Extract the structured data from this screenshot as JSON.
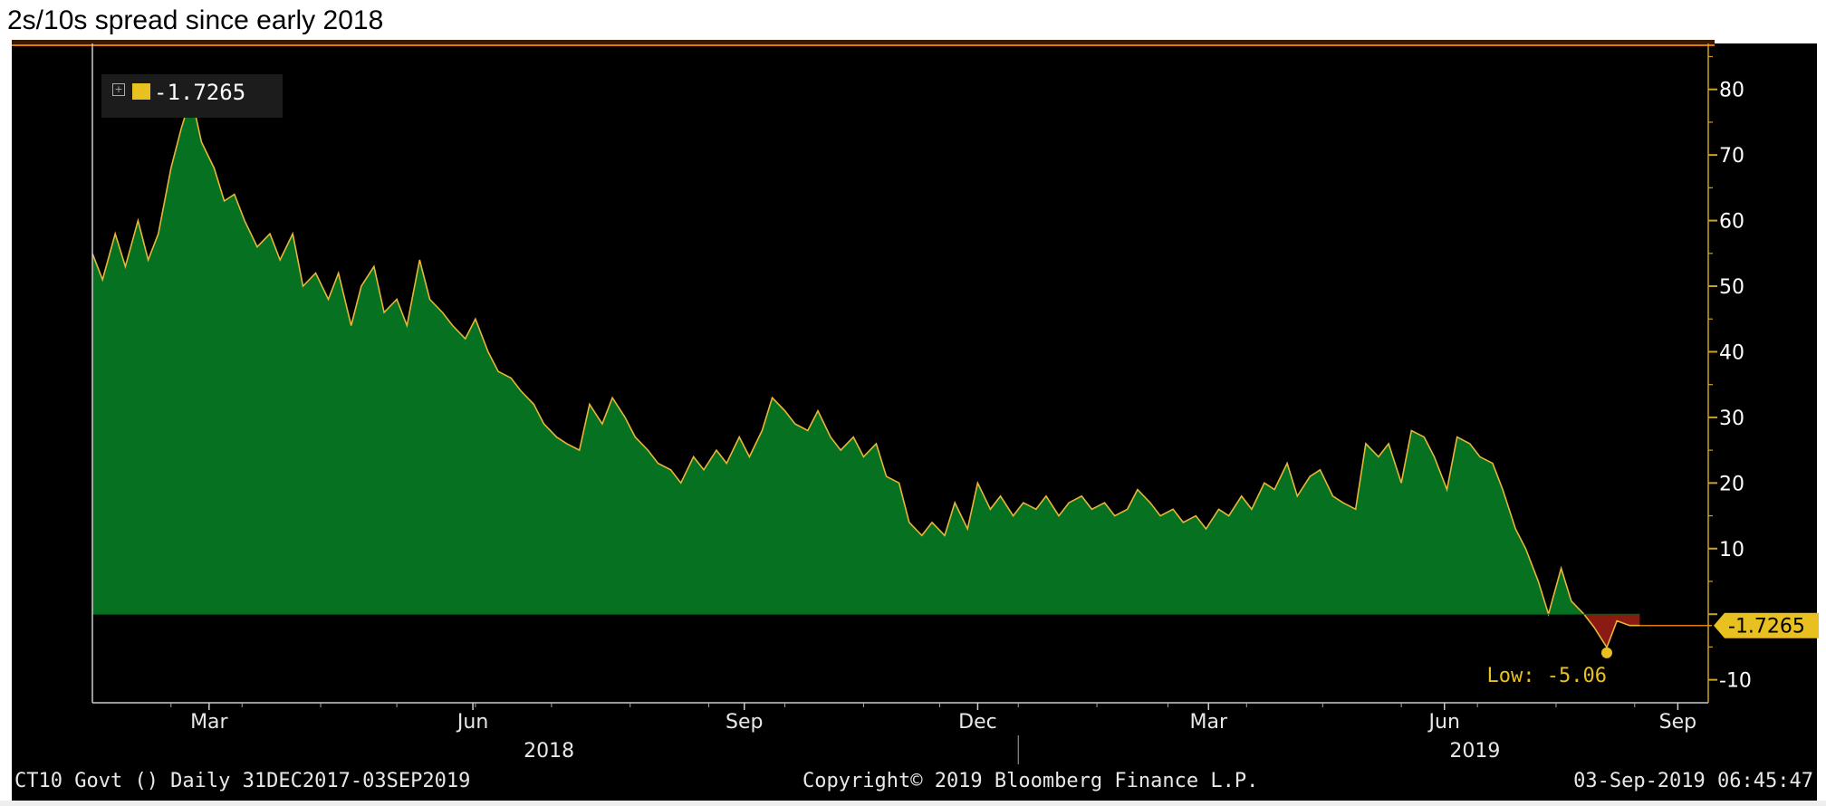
{
  "page_title": "2s/10s spread since early 2018",
  "legend": {
    "value_label": "-1.7265"
  },
  "footer": {
    "left": "CT10 Govt ()  Daily 31DEC2017-03SEP2019",
    "middle": "Copyright© 2019 Bloomberg Finance L.P.",
    "right": "03-Sep-2019 06:45:47"
  },
  "colors": {
    "positive_fill": "#067221",
    "negative_fill": "#8b1a12",
    "line": "#e8b53a",
    "axis": "#c9a227",
    "background": "#000000"
  },
  "chart_data": {
    "type": "area",
    "title": "2s/10s spread since early 2018",
    "series": [
      {
        "values": [
          [
            "2018-01-01",
            55
          ],
          [
            "2018-01-05",
            51
          ],
          [
            "2018-01-10",
            58
          ],
          [
            "2018-01-14",
            53
          ],
          [
            "2018-01-19",
            60
          ],
          [
            "2018-01-23",
            54
          ],
          [
            "2018-01-27",
            58
          ],
          [
            "2018-02-01",
            68
          ],
          [
            "2018-02-05",
            74
          ],
          [
            "2018-02-09",
            79
          ],
          [
            "2018-02-13",
            72
          ],
          [
            "2018-02-18",
            68
          ],
          [
            "2018-02-22",
            63
          ],
          [
            "2018-02-26",
            64
          ],
          [
            "2018-03-02",
            60
          ],
          [
            "2018-03-07",
            56
          ],
          [
            "2018-03-12",
            58
          ],
          [
            "2018-03-16",
            54
          ],
          [
            "2018-03-21",
            58
          ],
          [
            "2018-03-25",
            50
          ],
          [
            "2018-03-30",
            52
          ],
          [
            "2018-04-04",
            48
          ],
          [
            "2018-04-08",
            52
          ],
          [
            "2018-04-13",
            44
          ],
          [
            "2018-04-17",
            50
          ],
          [
            "2018-04-22",
            53
          ],
          [
            "2018-04-26",
            46
          ],
          [
            "2018-05-01",
            48
          ],
          [
            "2018-05-05",
            44
          ],
          [
            "2018-05-10",
            54
          ],
          [
            "2018-05-14",
            48
          ],
          [
            "2018-05-19",
            46
          ],
          [
            "2018-05-23",
            44
          ],
          [
            "2018-05-28",
            42
          ],
          [
            "2018-06-01",
            45
          ],
          [
            "2018-06-06",
            40
          ],
          [
            "2018-06-10",
            37
          ],
          [
            "2018-06-15",
            36
          ],
          [
            "2018-06-19",
            34
          ],
          [
            "2018-06-24",
            32
          ],
          [
            "2018-06-28",
            29
          ],
          [
            "2018-07-03",
            27
          ],
          [
            "2018-07-07",
            26
          ],
          [
            "2018-07-12",
            25
          ],
          [
            "2018-07-16",
            32
          ],
          [
            "2018-07-21",
            29
          ],
          [
            "2018-07-25",
            33
          ],
          [
            "2018-07-30",
            30
          ],
          [
            "2018-08-03",
            27
          ],
          [
            "2018-08-08",
            25
          ],
          [
            "2018-08-12",
            23
          ],
          [
            "2018-08-17",
            22
          ],
          [
            "2018-08-21",
            20
          ],
          [
            "2018-08-26",
            24
          ],
          [
            "2018-08-30",
            22
          ],
          [
            "2018-09-04",
            25
          ],
          [
            "2018-09-08",
            23
          ],
          [
            "2018-09-13",
            27
          ],
          [
            "2018-09-17",
            24
          ],
          [
            "2018-09-22",
            28
          ],
          [
            "2018-09-26",
            33
          ],
          [
            "2018-10-01",
            31
          ],
          [
            "2018-10-05",
            29
          ],
          [
            "2018-10-10",
            28
          ],
          [
            "2018-10-14",
            31
          ],
          [
            "2018-10-19",
            27
          ],
          [
            "2018-10-23",
            25
          ],
          [
            "2018-10-28",
            27
          ],
          [
            "2018-11-01",
            24
          ],
          [
            "2018-11-06",
            26
          ],
          [
            "2018-11-10",
            21
          ],
          [
            "2018-11-15",
            20
          ],
          [
            "2018-11-19",
            14
          ],
          [
            "2018-11-24",
            12
          ],
          [
            "2018-11-28",
            14
          ],
          [
            "2018-12-03",
            12
          ],
          [
            "2018-12-07",
            17
          ],
          [
            "2018-12-12",
            13
          ],
          [
            "2018-12-16",
            20
          ],
          [
            "2018-12-21",
            16
          ],
          [
            "2018-12-25",
            18
          ],
          [
            "2018-12-30",
            15
          ],
          [
            "2019-01-03",
            17
          ],
          [
            "2019-01-08",
            16
          ],
          [
            "2019-01-12",
            18
          ],
          [
            "2019-01-17",
            15
          ],
          [
            "2019-01-21",
            17
          ],
          [
            "2019-01-26",
            18
          ],
          [
            "2019-01-30",
            16
          ],
          [
            "2019-02-04",
            17
          ],
          [
            "2019-02-08",
            15
          ],
          [
            "2019-02-13",
            16
          ],
          [
            "2019-02-17",
            19
          ],
          [
            "2019-02-22",
            17
          ],
          [
            "2019-02-26",
            15
          ],
          [
            "2019-03-03",
            16
          ],
          [
            "2019-03-07",
            14
          ],
          [
            "2019-03-12",
            15
          ],
          [
            "2019-03-16",
            13
          ],
          [
            "2019-03-21",
            16
          ],
          [
            "2019-03-25",
            15
          ],
          [
            "2019-03-30",
            18
          ],
          [
            "2019-04-03",
            16
          ],
          [
            "2019-04-08",
            20
          ],
          [
            "2019-04-12",
            19
          ],
          [
            "2019-04-17",
            23
          ],
          [
            "2019-04-21",
            18
          ],
          [
            "2019-04-26",
            21
          ],
          [
            "2019-04-30",
            22
          ],
          [
            "2019-05-05",
            18
          ],
          [
            "2019-05-09",
            17
          ],
          [
            "2019-05-14",
            16
          ],
          [
            "2019-05-18",
            26
          ],
          [
            "2019-05-23",
            24
          ],
          [
            "2019-05-27",
            26
          ],
          [
            "2019-06-01",
            20
          ],
          [
            "2019-06-05",
            28
          ],
          [
            "2019-06-10",
            27
          ],
          [
            "2019-06-14",
            24
          ],
          [
            "2019-06-19",
            19
          ],
          [
            "2019-06-23",
            27
          ],
          [
            "2019-06-28",
            26
          ],
          [
            "2019-07-02",
            24
          ],
          [
            "2019-07-07",
            23
          ],
          [
            "2019-07-11",
            19
          ],
          [
            "2019-07-16",
            13
          ],
          [
            "2019-07-20",
            10
          ],
          [
            "2019-07-25",
            5
          ],
          [
            "2019-07-29",
            0
          ],
          [
            "2019-08-03",
            7
          ],
          [
            "2019-08-07",
            2
          ],
          [
            "2019-08-12",
            0
          ],
          [
            "2019-08-16",
            -2
          ],
          [
            "2019-08-21",
            -5.06
          ],
          [
            "2019-08-25",
            -1
          ],
          [
            "2019-08-30",
            -1.7265
          ],
          [
            "2019-09-03",
            -1.7265
          ]
        ]
      }
    ],
    "x_axis": {
      "tick_labels": [
        "Mar",
        "Jun",
        "Sep",
        "Dec",
        "Mar",
        "Jun",
        "Sep"
      ],
      "tick_dates": [
        "2018-02-16",
        "2018-05-31",
        "2018-09-15",
        "2018-12-16",
        "2019-03-17",
        "2019-06-18",
        "2019-09-18"
      ],
      "year_labels": [
        "2018",
        "2019"
      ],
      "year_dates": [
        "2018-06-30",
        "2019-06-30"
      ],
      "range": [
        "2018-01-01",
        "2019-09-30"
      ]
    },
    "y_axis": {
      "ticks": [
        80,
        70,
        60,
        50,
        40,
        30,
        20,
        10,
        -10
      ],
      "range": [
        -13.5,
        87
      ]
    },
    "annotations": {
      "high": {
        "date": "2018-02-09",
        "value": 79
      },
      "low": {
        "date": "2019-08-21",
        "value": -5.06,
        "label": "Low: -5.06"
      },
      "last": {
        "value": -1.7265,
        "label": "-1.7265"
      }
    },
    "grid": false,
    "legend_position": "top-left"
  }
}
